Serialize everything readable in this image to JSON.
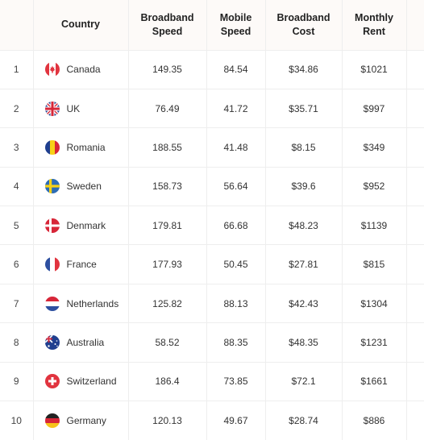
{
  "header": {
    "country": "Country",
    "broadband_speed": [
      "Broadband",
      "Speed"
    ],
    "mobile_speed": [
      "Mobile",
      "Speed"
    ],
    "broadband_cost": [
      "Broadband",
      "Cost"
    ],
    "monthly_rent": [
      "Monthly",
      "Rent"
    ]
  },
  "rows": [
    {
      "rank": "1",
      "country": "Canada",
      "flag": "canada-flag-icon",
      "broadband_speed": "149.35",
      "mobile_speed": "84.54",
      "broadband_cost": "$34.86",
      "monthly_rent": "$1021"
    },
    {
      "rank": "2",
      "country": "UK",
      "flag": "uk-flag-icon",
      "broadband_speed": "76.49",
      "mobile_speed": "41.72",
      "broadband_cost": "$35.71",
      "monthly_rent": "$997"
    },
    {
      "rank": "3",
      "country": "Romania",
      "flag": "romania-flag-icon",
      "broadband_speed": "188.55",
      "mobile_speed": "41.48",
      "broadband_cost": "$8.15",
      "monthly_rent": "$349"
    },
    {
      "rank": "4",
      "country": "Sweden",
      "flag": "sweden-flag-icon",
      "broadband_speed": "158.73",
      "mobile_speed": "56.64",
      "broadband_cost": "$39.6",
      "monthly_rent": "$952"
    },
    {
      "rank": "5",
      "country": "Denmark",
      "flag": "denmark-flag-icon",
      "broadband_speed": "179.81",
      "mobile_speed": "66.68",
      "broadband_cost": "$48.23",
      "monthly_rent": "$1139"
    },
    {
      "rank": "6",
      "country": "France",
      "flag": "france-flag-icon",
      "broadband_speed": "177.93",
      "mobile_speed": "50.45",
      "broadband_cost": "$27.81",
      "monthly_rent": "$815"
    },
    {
      "rank": "7",
      "country": "Netherlands",
      "flag": "netherlands-flag-icon",
      "broadband_speed": "125.82",
      "mobile_speed": "88.13",
      "broadband_cost": "$42.43",
      "monthly_rent": "$1304"
    },
    {
      "rank": "8",
      "country": "Australia",
      "flag": "australia-flag-icon",
      "broadband_speed": "58.52",
      "mobile_speed": "88.35",
      "broadband_cost": "$48.35",
      "monthly_rent": "$1231"
    },
    {
      "rank": "9",
      "country": "Switzerland",
      "flag": "switzerland-flag-icon",
      "broadband_speed": "186.4",
      "mobile_speed": "73.85",
      "broadband_cost": "$72.1",
      "monthly_rent": "$1661"
    },
    {
      "rank": "10",
      "country": "Germany",
      "flag": "germany-flag-icon",
      "broadband_speed": "120.13",
      "mobile_speed": "49.67",
      "broadband_cost": "$28.74",
      "monthly_rent": "$886"
    }
  ]
}
